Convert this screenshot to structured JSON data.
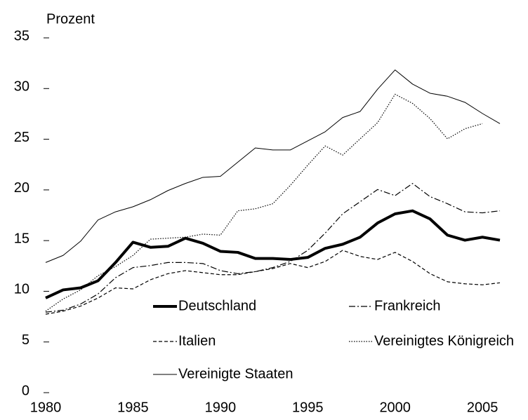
{
  "chart_data": {
    "type": "line",
    "y_label": "Prozent",
    "x": [
      1980,
      1981,
      1982,
      1983,
      1984,
      1985,
      1986,
      1987,
      1988,
      1989,
      1990,
      1991,
      1992,
      1993,
      1994,
      1995,
      1996,
      1997,
      1998,
      1999,
      2000,
      2001,
      2002,
      2003,
      2004,
      2005,
      2006
    ],
    "xlim": [
      1980,
      2006
    ],
    "xticks": [
      1980,
      1985,
      1990,
      1995,
      2000,
      2005
    ],
    "ylim": [
      0,
      35
    ],
    "yticks": [
      0,
      5,
      10,
      15,
      20,
      25,
      30,
      35
    ],
    "grid": false,
    "legend": "inside",
    "series": [
      {
        "name": "Deutschland",
        "color": "#000000",
        "width": 4,
        "dash": "none",
        "values": [
          9.2,
          10.0,
          10.2,
          10.9,
          12.7,
          14.7,
          14.2,
          14.3,
          15.1,
          14.6,
          13.8,
          13.7,
          13.1,
          13.1,
          13.0,
          13.2,
          14.1,
          14.5,
          15.2,
          16.6,
          17.5,
          17.8,
          17.0,
          15.4,
          14.9,
          15.2,
          14.9
        ]
      },
      {
        "name": "Frankreich",
        "color": "#000000",
        "width": 1.2,
        "dash": "9,3,2,3",
        "values": [
          7.8,
          8.0,
          8.6,
          9.6,
          11.2,
          12.2,
          12.4,
          12.7,
          12.7,
          12.6,
          11.9,
          11.6,
          11.8,
          12.2,
          12.8,
          13.9,
          15.6,
          17.5,
          18.7,
          19.9,
          19.3,
          20.5,
          19.2,
          18.5,
          17.7,
          17.6,
          17.8
        ]
      },
      {
        "name": "Italien",
        "color": "#000000",
        "width": 1.2,
        "dash": "5,3",
        "values": [
          7.6,
          7.9,
          8.4,
          9.2,
          10.2,
          10.1,
          11.0,
          11.6,
          11.9,
          11.7,
          11.5,
          11.5,
          11.8,
          12.1,
          12.6,
          12.2,
          12.8,
          13.9,
          13.3,
          13.0,
          13.7,
          12.8,
          11.6,
          10.8,
          10.6,
          10.5,
          10.7
        ]
      },
      {
        "name": "Vereinigtes Königreich",
        "color": "#000000",
        "width": 1.2,
        "dash": "1.5,2",
        "values": [
          7.9,
          9.1,
          10.0,
          11.4,
          12.3,
          13.4,
          15.0,
          15.1,
          15.2,
          15.5,
          15.4,
          17.8,
          18.0,
          18.5,
          20.3,
          22.3,
          24.2,
          23.3,
          24.9,
          26.5,
          29.3,
          28.4,
          26.9,
          24.9,
          25.9,
          26.4,
          null
        ]
      },
      {
        "name": "Vereinigte Staaten",
        "color": "#000000",
        "width": 1,
        "dash": "none",
        "values": [
          12.7,
          13.4,
          14.8,
          16.9,
          17.7,
          18.2,
          18.9,
          19.8,
          20.5,
          21.1,
          21.2,
          22.6,
          24.0,
          23.8,
          23.8,
          24.7,
          25.6,
          27.0,
          27.6,
          29.8,
          31.7,
          30.3,
          29.4,
          29.1,
          28.5,
          27.4,
          26.4
        ]
      }
    ]
  }
}
